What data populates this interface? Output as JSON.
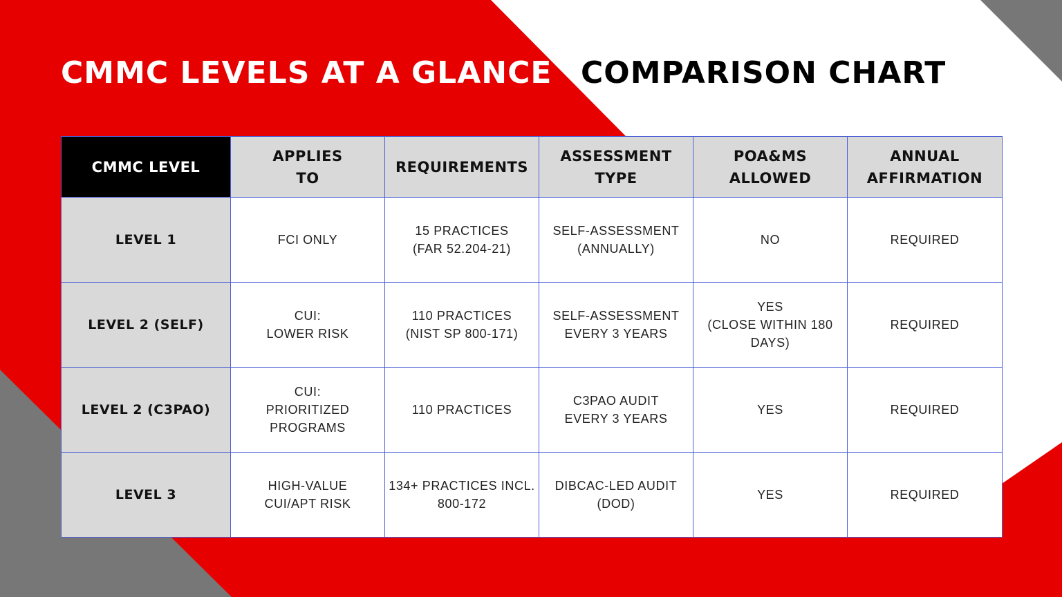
{
  "colors": {
    "accent_red": "#e60000",
    "accent_gray": "#777777",
    "header_gray": "#d9d9d9",
    "border_blue": "#4a5ed6"
  },
  "title_left": "CMMC LEVELS AT A GLANCE",
  "title_right": "COMPARISON CHART",
  "chart_data": {
    "type": "table",
    "columns": [
      "CMMC LEVEL",
      "APPLIES\nTO",
      "REQUIREMENTS",
      "ASSESSMENT\nTYPE",
      "POA&MS\nALLOWED",
      "ANNUAL\nAFFIRMATION"
    ],
    "rows": [
      [
        "LEVEL 1",
        "FCI ONLY",
        "15 PRACTICES\n(FAR 52.204-21)",
        "SELF-ASSESSMENT\n(ANNUALLY)",
        "NO",
        "REQUIRED"
      ],
      [
        "LEVEL 2 (SELF)",
        "CUI:\nLOWER RISK",
        "110 PRACTICES\n(NIST SP 800-171)",
        "SELF-ASSESSMENT\nEVERY 3 YEARS",
        "YES\n(CLOSE WITHIN 180\nDAYS)",
        "REQUIRED"
      ],
      [
        "LEVEL 2 (C3PAO)",
        "CUI:\nPRIORITIZED\nPROGRAMS",
        "110 PRACTICES",
        "C3PAO AUDIT\nEVERY 3 YEARS",
        "YES",
        "REQUIRED"
      ],
      [
        "LEVEL 3",
        "HIGH-VALUE\nCUI/APT RISK",
        "134+ PRACTICES INCL.\n800-172",
        "DIBCAC-LED AUDIT\n(DOD)",
        "YES",
        "REQUIRED"
      ]
    ]
  }
}
